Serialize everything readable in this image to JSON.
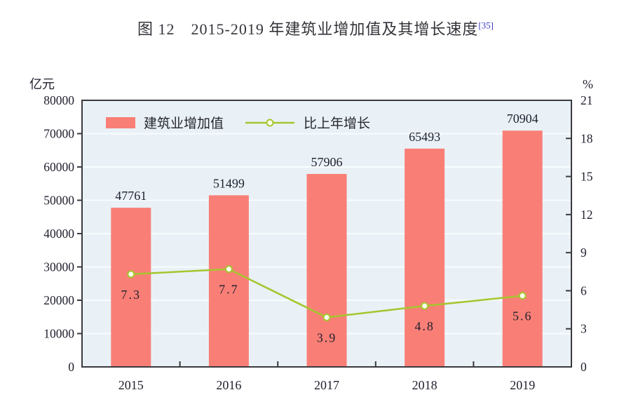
{
  "title": {
    "text": "图 12　2015-2019 年建筑业增加值及其增长速度",
    "ref": "[35]"
  },
  "left_axis": {
    "unit": "亿元",
    "min": 0,
    "max": 80000,
    "step": 10000
  },
  "right_axis": {
    "unit": "%",
    "min": 0,
    "max": 21,
    "step": 3
  },
  "legend": {
    "items": [
      {
        "label": "建筑业增加值",
        "type": "bar"
      },
      {
        "label": "比上年增长",
        "type": "line"
      }
    ]
  },
  "chart_data": {
    "type": "combo-bar-line",
    "categories": [
      "2015",
      "2016",
      "2017",
      "2018",
      "2019"
    ],
    "series": [
      {
        "name": "建筑业增加值",
        "type": "bar",
        "axis": "left",
        "values": [
          47761,
          51499,
          57906,
          65493,
          70904
        ],
        "value_labels": [
          "47761",
          "51499",
          "57906",
          "65493",
          "70904"
        ]
      },
      {
        "name": "比上年增长",
        "type": "line",
        "axis": "right",
        "values": [
          7.3,
          7.7,
          3.9,
          4.8,
          5.6
        ],
        "value_labels": [
          "7.3",
          "7.7",
          "3.9",
          "4.8",
          "5.6"
        ]
      }
    ],
    "title": "图 12 2015-2019 年建筑业增加值及其增长速度",
    "xlabel": "",
    "ylabel_left": "亿元",
    "ylabel_right": "%",
    "left_ylim": [
      0,
      80000
    ],
    "right_ylim": [
      0,
      21
    ],
    "grid": true,
    "legend_position": "top-left-inside"
  },
  "colors": {
    "bar": "#f97f76",
    "line": "#a6c52e",
    "marker_fill": "#fbffee",
    "plot_bg": "#e9f1f6",
    "grid": "#f9fcfd",
    "frame": "#3a3a3e",
    "text": "#1f1f2e",
    "ref_blue": "#3a3ac8"
  }
}
